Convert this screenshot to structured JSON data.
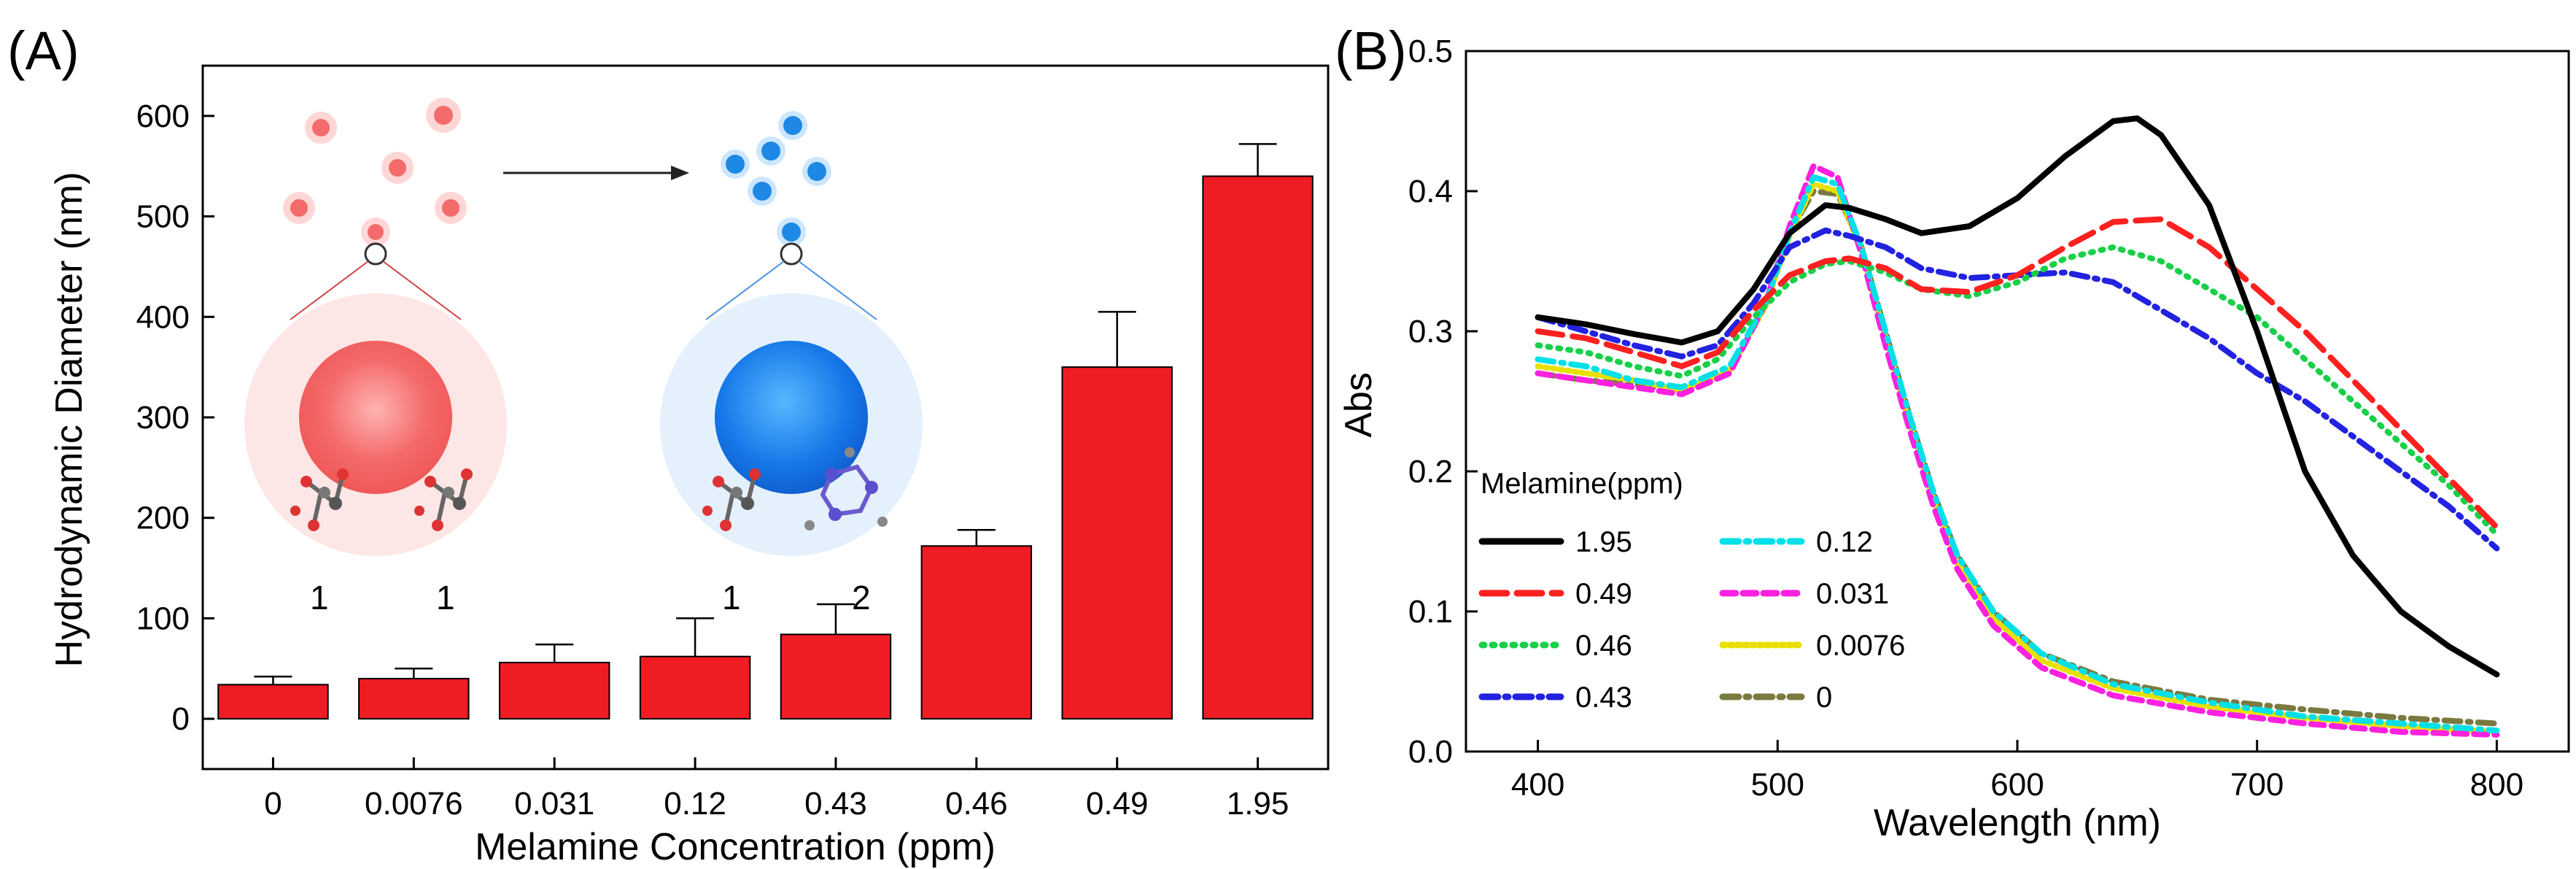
{
  "panel_a": {
    "label": "(A)",
    "chart_data": {
      "type": "bar",
      "title": "",
      "xlabel": "Melamine Concentration (ppm)",
      "ylabel": "Hydrodynamic Diameter (nm)",
      "categories": [
        "0",
        "0.0076",
        "0.031",
        "0.12",
        "0.43",
        "0.46",
        "0.49",
        "1.95"
      ],
      "values": [
        34,
        40,
        56,
        62,
        84,
        172,
        350,
        540
      ],
      "errors": [
        8,
        10,
        18,
        38,
        30,
        16,
        55,
        32
      ],
      "bar_color": "#ef1c24",
      "ylim": [
        -50,
        650
      ],
      "yticks": [
        0,
        100,
        200,
        300,
        400,
        500,
        600
      ]
    },
    "inset": {
      "left_labels": [
        "1",
        "1"
      ],
      "right_labels": [
        "1",
        "2"
      ],
      "left_color": "#f26d6d",
      "right_color": "#1e88e5"
    }
  },
  "panel_b": {
    "label": "(B)",
    "chart_data": {
      "type": "line",
      "title": "",
      "xlabel": "Wavelength (nm)",
      "ylabel": "Abs",
      "xlim": [
        370,
        830
      ],
      "ylim": [
        0.0,
        0.5
      ],
      "xticks": [
        400,
        500,
        600,
        700,
        800
      ],
      "yticks": [
        0.0,
        0.1,
        0.2,
        0.3,
        0.4,
        0.5
      ],
      "ytick_labels": [
        "0.0",
        "0.1",
        "0.2",
        "0.3",
        "0.4",
        "0.5"
      ],
      "legend_title": "Melamine(ppm)",
      "series": [
        {
          "name": "1.95",
          "color": "#000000",
          "dash": "solid",
          "x": [
            400,
            420,
            440,
            460,
            475,
            490,
            505,
            520,
            530,
            545,
            560,
            580,
            600,
            620,
            640,
            650,
            660,
            680,
            700,
            720,
            740,
            760,
            780,
            800
          ],
          "y": [
            0.31,
            0.305,
            0.298,
            0.292,
            0.3,
            0.33,
            0.37,
            0.39,
            0.388,
            0.38,
            0.37,
            0.375,
            0.395,
            0.425,
            0.45,
            0.452,
            0.44,
            0.39,
            0.3,
            0.2,
            0.14,
            0.1,
            0.075,
            0.055
          ]
        },
        {
          "name": "0.49",
          "color": "#ff2020",
          "dash": "long",
          "x": [
            400,
            420,
            440,
            460,
            475,
            490,
            505,
            520,
            530,
            545,
            560,
            580,
            600,
            620,
            640,
            660,
            680,
            700,
            720,
            740,
            760,
            780,
            800
          ],
          "y": [
            0.3,
            0.295,
            0.285,
            0.275,
            0.285,
            0.315,
            0.34,
            0.35,
            0.352,
            0.345,
            0.33,
            0.328,
            0.34,
            0.36,
            0.378,
            0.38,
            0.36,
            0.33,
            0.3,
            0.265,
            0.23,
            0.195,
            0.16
          ]
        },
        {
          "name": "0.46",
          "color": "#18d048",
          "dash": "dot",
          "x": [
            400,
            420,
            440,
            460,
            475,
            490,
            505,
            520,
            530,
            545,
            560,
            580,
            600,
            620,
            640,
            660,
            680,
            700,
            720,
            740,
            760,
            780,
            800
          ],
          "y": [
            0.29,
            0.285,
            0.275,
            0.268,
            0.28,
            0.31,
            0.335,
            0.348,
            0.35,
            0.342,
            0.33,
            0.325,
            0.335,
            0.352,
            0.36,
            0.35,
            0.33,
            0.31,
            0.28,
            0.25,
            0.22,
            0.19,
            0.155
          ]
        },
        {
          "name": "0.43",
          "color": "#2222e0",
          "dash": "dashdot",
          "x": [
            400,
            420,
            440,
            460,
            475,
            490,
            505,
            520,
            530,
            545,
            560,
            580,
            600,
            620,
            640,
            660,
            680,
            700,
            720,
            740,
            760,
            780,
            800
          ],
          "y": [
            0.31,
            0.3,
            0.29,
            0.282,
            0.29,
            0.32,
            0.36,
            0.372,
            0.368,
            0.36,
            0.345,
            0.338,
            0.34,
            0.342,
            0.335,
            0.315,
            0.295,
            0.27,
            0.25,
            0.225,
            0.2,
            0.175,
            0.145
          ]
        },
        {
          "name": "0.12",
          "color": "#00e0e8",
          "dash": "dashdot",
          "x": [
            400,
            420,
            440,
            460,
            480,
            495,
            505,
            515,
            525,
            535,
            545,
            555,
            565,
            575,
            590,
            610,
            640,
            680,
            720,
            760,
            800
          ],
          "y": [
            0.28,
            0.275,
            0.265,
            0.26,
            0.275,
            0.32,
            0.37,
            0.41,
            0.405,
            0.36,
            0.3,
            0.24,
            0.185,
            0.14,
            0.1,
            0.07,
            0.048,
            0.035,
            0.025,
            0.02,
            0.015
          ]
        },
        {
          "name": "0.031",
          "color": "#ff20e0",
          "dash": "dash",
          "x": [
            400,
            420,
            440,
            460,
            480,
            495,
            505,
            515,
            525,
            535,
            545,
            555,
            565,
            575,
            590,
            610,
            640,
            680,
            720,
            760,
            800
          ],
          "y": [
            0.27,
            0.265,
            0.26,
            0.255,
            0.27,
            0.32,
            0.375,
            0.418,
            0.41,
            0.355,
            0.29,
            0.23,
            0.175,
            0.13,
            0.09,
            0.06,
            0.04,
            0.028,
            0.02,
            0.014,
            0.012
          ]
        },
        {
          "name": "0.0076",
          "color": "#e8e000",
          "dash": "dotfine",
          "x": [
            400,
            420,
            440,
            460,
            480,
            495,
            505,
            515,
            525,
            535,
            545,
            555,
            565,
            575,
            590,
            610,
            640,
            680,
            720,
            760,
            800
          ],
          "y": [
            0.275,
            0.27,
            0.265,
            0.258,
            0.272,
            0.318,
            0.368,
            0.405,
            0.4,
            0.358,
            0.295,
            0.235,
            0.18,
            0.135,
            0.095,
            0.065,
            0.045,
            0.032,
            0.024,
            0.018,
            0.014
          ]
        },
        {
          "name": "0",
          "color": "#7a7a40",
          "dash": "dashdot",
          "x": [
            400,
            420,
            440,
            460,
            480,
            495,
            505,
            515,
            525,
            535,
            545,
            555,
            565,
            575,
            590,
            610,
            640,
            680,
            720,
            760,
            800
          ],
          "y": [
            0.27,
            0.265,
            0.262,
            0.258,
            0.272,
            0.32,
            0.37,
            0.4,
            0.398,
            0.36,
            0.3,
            0.24,
            0.185,
            0.14,
            0.1,
            0.07,
            0.05,
            0.037,
            0.03,
            0.024,
            0.02
          ]
        }
      ]
    }
  }
}
